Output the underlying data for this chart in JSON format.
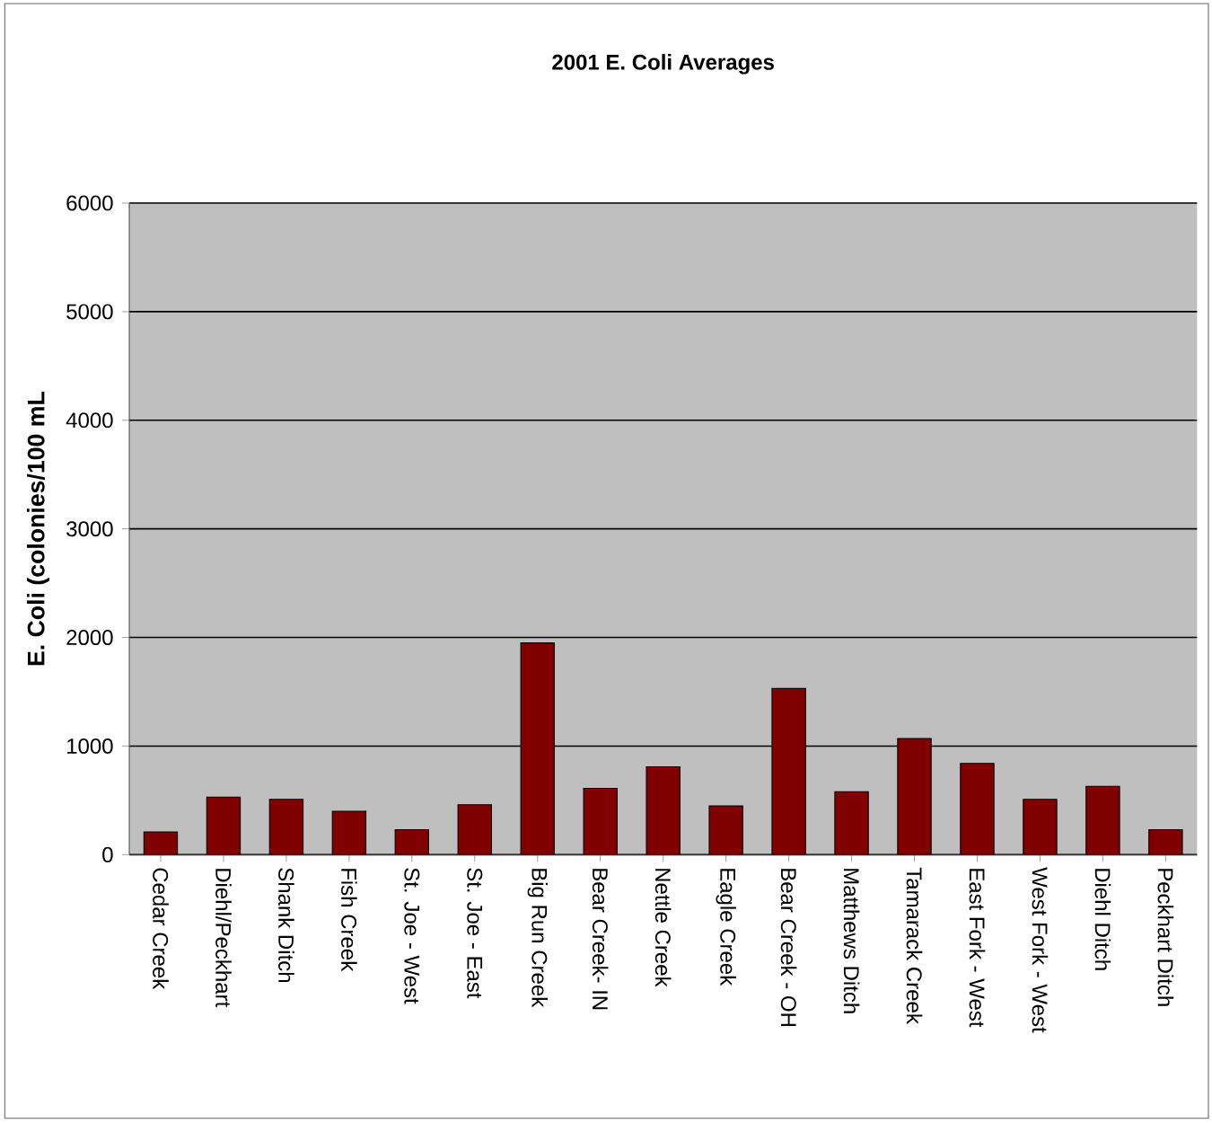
{
  "chart_data": {
    "type": "bar",
    "title": "2001 E. Coli Averages",
    "ylabel": "E. Coli (colonies/100 mL",
    "categories": [
      "Cedar Creek",
      "Diehl/Peckhart",
      "Shank Ditch",
      "Fish Creek",
      "St. Joe - West",
      "St. Joe - East",
      "Big Run Creek",
      "Bear Creek- IN",
      "Nettle Creek",
      "Eagle Creek",
      "Bear Creek - OH",
      "Matthews Ditch",
      "Tamarack Creek",
      "East Fork - West",
      "West Fork - West",
      "Diehl Ditch",
      "Peckhart Ditch"
    ],
    "values": [
      210,
      530,
      510,
      400,
      230,
      460,
      1950,
      610,
      810,
      450,
      1530,
      580,
      1070,
      840,
      510,
      630,
      230
    ],
    "color": "#800000",
    "ylim": [
      0,
      6000
    ],
    "yticks": [
      0,
      1000,
      2000,
      3000,
      4000,
      5000,
      6000
    ],
    "grid": "y"
  }
}
